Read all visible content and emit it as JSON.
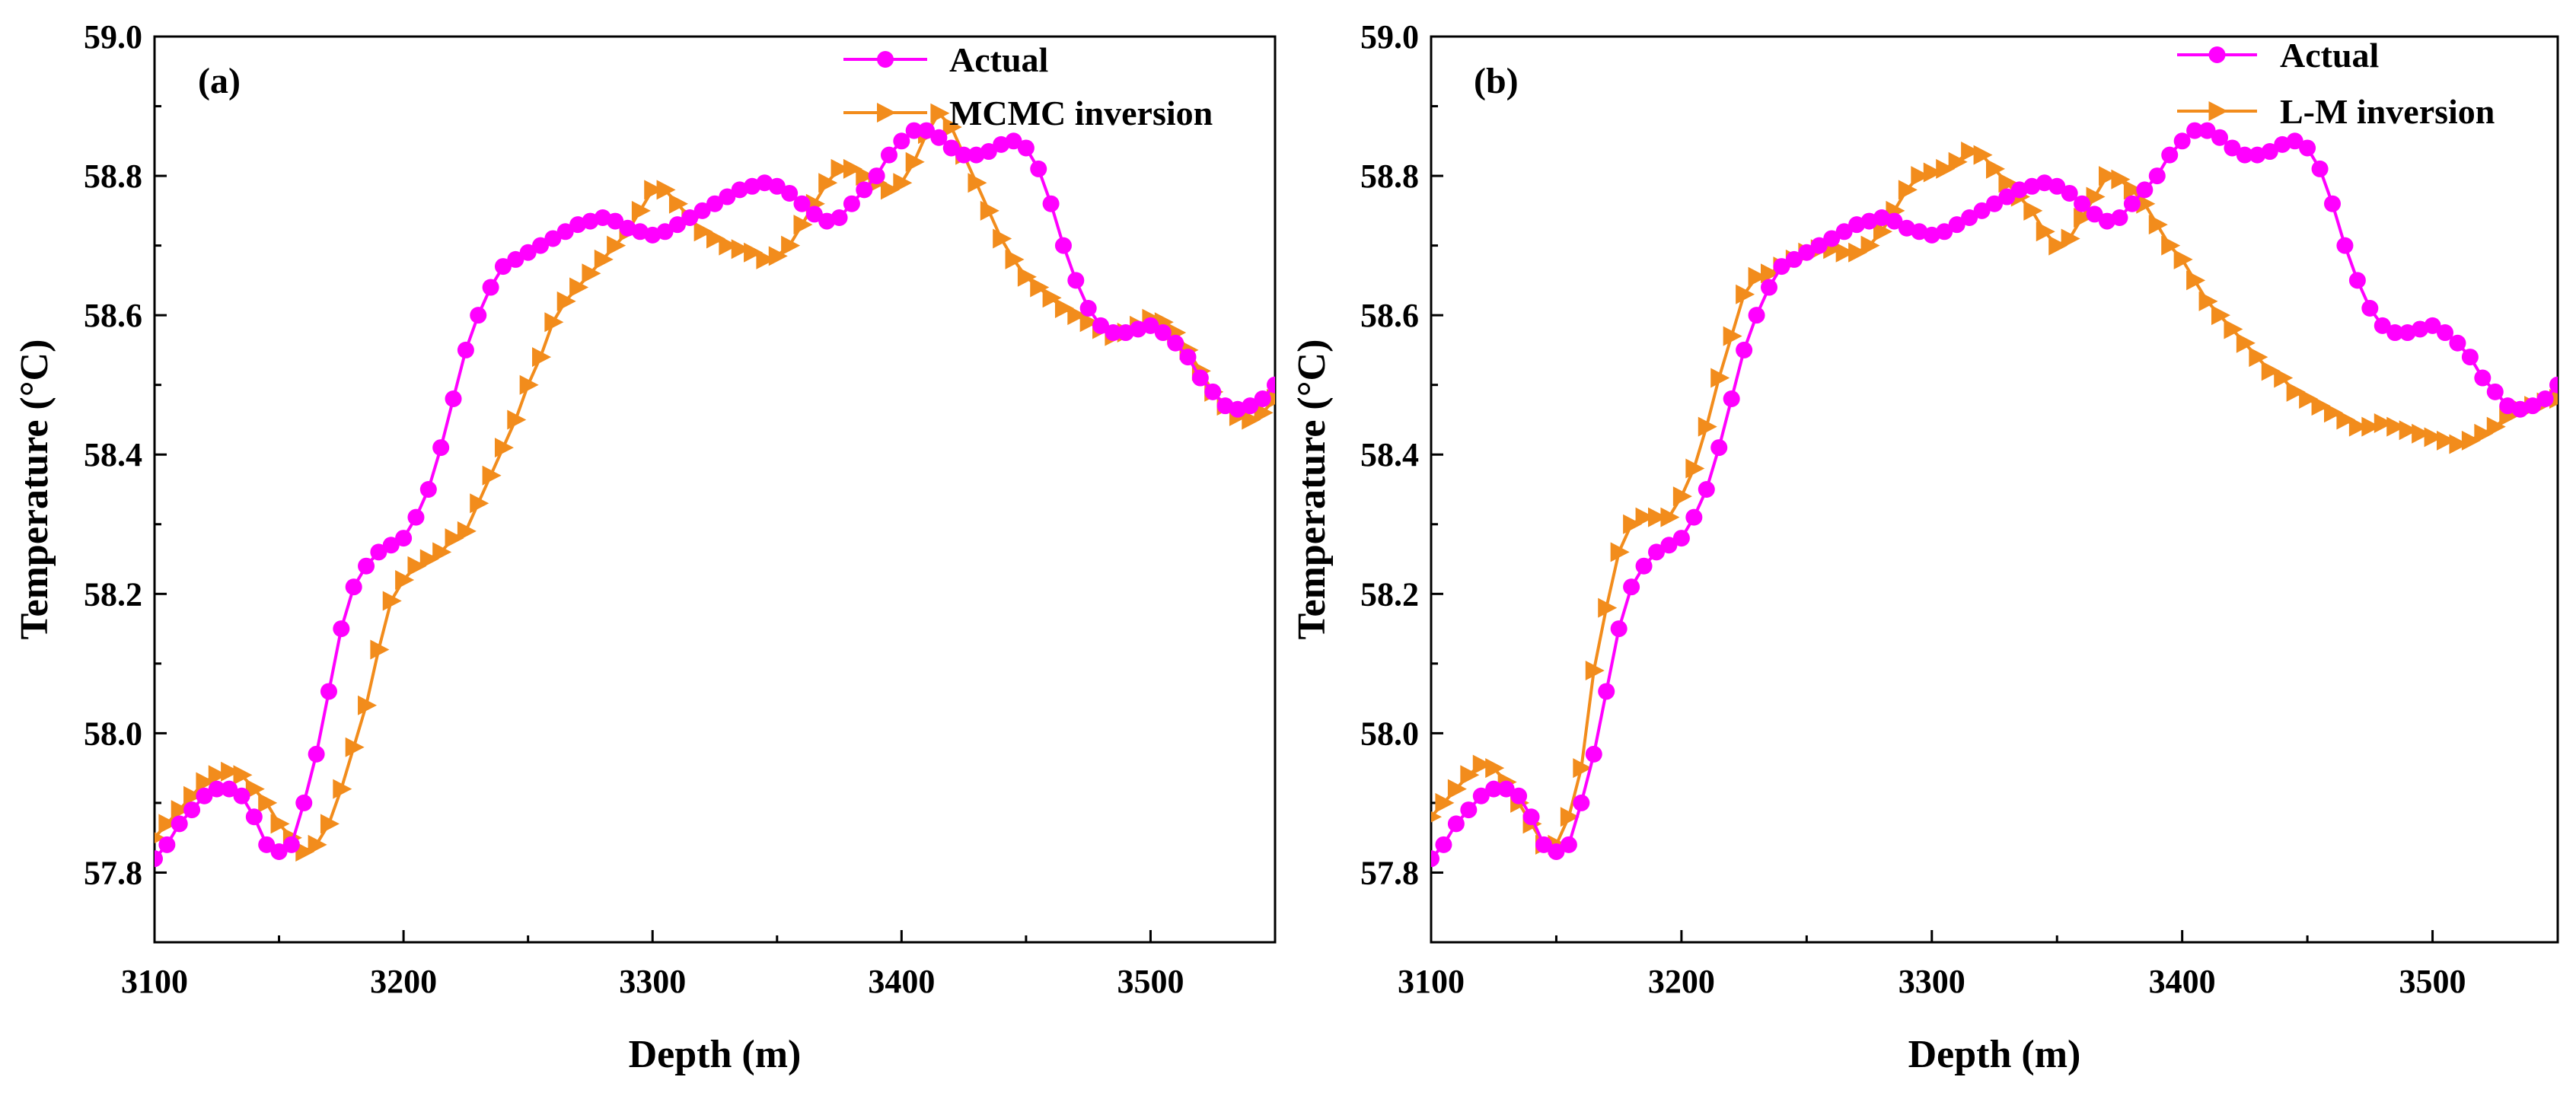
{
  "chart_data": [
    {
      "type": "line",
      "panel_label": "(a)",
      "xlabel": "Depth (m)",
      "ylabel": "Temperature (°C)",
      "xlim": [
        3100,
        3550
      ],
      "ylim": [
        57.7,
        59.0
      ],
      "xticks": [
        3100,
        3200,
        3300,
        3400,
        3500
      ],
      "xtick_labels": [
        "3100",
        "3200",
        "3300",
        "3400",
        "3500"
      ],
      "yticks": [
        57.8,
        58.0,
        58.2,
        58.4,
        58.6,
        58.8,
        59.0
      ],
      "ytick_labels": [
        "57.8",
        "58.0",
        "58.2",
        "58.4",
        "58.6",
        "58.8",
        "59.0"
      ],
      "legend_position": "top-right",
      "series": [
        {
          "name": "Actual",
          "color": "#ff00ff",
          "marker": "circle",
          "x": [
            3100,
            3105,
            3110,
            3115,
            3120,
            3125,
            3130,
            3135,
            3140,
            3145,
            3150,
            3155,
            3160,
            3165,
            3170,
            3175,
            3180,
            3185,
            3190,
            3195,
            3200,
            3205,
            3210,
            3215,
            3220,
            3225,
            3230,
            3235,
            3240,
            3245,
            3250,
            3255,
            3260,
            3265,
            3270,
            3275,
            3280,
            3285,
            3290,
            3295,
            3300,
            3305,
            3310,
            3315,
            3320,
            3325,
            3330,
            3335,
            3340,
            3345,
            3350,
            3355,
            3360,
            3365,
            3370,
            3375,
            3380,
            3385,
            3390,
            3395,
            3400,
            3405,
            3410,
            3415,
            3420,
            3425,
            3430,
            3435,
            3440,
            3445,
            3450,
            3455,
            3460,
            3465,
            3470,
            3475,
            3480,
            3485,
            3490,
            3495,
            3500,
            3505,
            3510,
            3515,
            3520,
            3525,
            3530,
            3535,
            3540,
            3545,
            3550
          ],
          "y": [
            57.82,
            57.84,
            57.87,
            57.89,
            57.91,
            57.92,
            57.92,
            57.91,
            57.88,
            57.84,
            57.83,
            57.84,
            57.9,
            57.97,
            58.06,
            58.15,
            58.21,
            58.24,
            58.26,
            58.27,
            58.28,
            58.31,
            58.35,
            58.41,
            58.48,
            58.55,
            58.6,
            58.64,
            58.67,
            58.68,
            58.69,
            58.7,
            58.71,
            58.72,
            58.73,
            58.735,
            58.74,
            58.735,
            58.725,
            58.72,
            58.715,
            58.72,
            58.73,
            58.74,
            58.75,
            58.76,
            58.77,
            58.78,
            58.785,
            58.79,
            58.785,
            58.775,
            58.76,
            58.745,
            58.735,
            58.74,
            58.76,
            58.78,
            58.8,
            58.83,
            58.85,
            58.865,
            58.865,
            58.855,
            58.84,
            58.83,
            58.83,
            58.835,
            58.845,
            58.85,
            58.84,
            58.81,
            58.76,
            58.7,
            58.65,
            58.61,
            58.585,
            58.575,
            58.575,
            58.58,
            58.585,
            58.575,
            58.56,
            58.54,
            58.51,
            58.49,
            58.47,
            58.465,
            58.47,
            58.48,
            58.5
          ]
        },
        {
          "name": "MCMC inversion",
          "color": "#f28c1c",
          "marker": "triangle-right",
          "x": [
            3100,
            3105,
            3110,
            3115,
            3120,
            3125,
            3130,
            3135,
            3140,
            3145,
            3150,
            3155,
            3160,
            3165,
            3170,
            3175,
            3180,
            3185,
            3190,
            3195,
            3200,
            3205,
            3210,
            3215,
            3220,
            3225,
            3230,
            3235,
            3240,
            3245,
            3250,
            3255,
            3260,
            3265,
            3270,
            3275,
            3280,
            3285,
            3290,
            3295,
            3300,
            3305,
            3310,
            3315,
            3320,
            3325,
            3330,
            3335,
            3340,
            3345,
            3350,
            3355,
            3360,
            3365,
            3370,
            3375,
            3380,
            3385,
            3390,
            3395,
            3400,
            3405,
            3410,
            3415,
            3420,
            3425,
            3430,
            3435,
            3440,
            3445,
            3450,
            3455,
            3460,
            3465,
            3470,
            3475,
            3480,
            3485,
            3490,
            3495,
            3500,
            3505,
            3510,
            3515,
            3520,
            3525,
            3530,
            3535,
            3540,
            3545,
            3550
          ],
          "y": [
            57.85,
            57.87,
            57.89,
            57.91,
            57.93,
            57.94,
            57.945,
            57.94,
            57.92,
            57.9,
            57.87,
            57.85,
            57.83,
            57.84,
            57.87,
            57.92,
            57.98,
            58.04,
            58.12,
            58.19,
            58.22,
            58.24,
            58.25,
            58.26,
            58.28,
            58.29,
            58.33,
            58.37,
            58.41,
            58.45,
            58.5,
            58.54,
            58.59,
            58.62,
            58.64,
            58.66,
            58.68,
            58.7,
            58.72,
            58.75,
            58.78,
            58.78,
            58.76,
            58.74,
            58.72,
            58.71,
            58.7,
            58.695,
            58.69,
            58.68,
            58.685,
            58.7,
            58.73,
            58.76,
            58.79,
            58.81,
            58.81,
            58.8,
            58.79,
            58.78,
            58.79,
            58.82,
            58.86,
            58.89,
            58.87,
            58.83,
            58.79,
            58.75,
            58.71,
            58.68,
            58.655,
            58.64,
            58.625,
            58.61,
            58.6,
            58.59,
            58.58,
            58.57,
            58.575,
            58.585,
            58.595,
            58.59,
            58.575,
            58.55,
            58.52,
            58.49,
            58.47,
            58.455,
            58.45,
            58.46,
            58.48
          ]
        }
      ]
    },
    {
      "type": "line",
      "panel_label": "(b)",
      "xlabel": "Depth (m)",
      "ylabel": "Temperature (°C)",
      "xlim": [
        3100,
        3550
      ],
      "ylim": [
        57.7,
        59.0
      ],
      "xticks": [
        3100,
        3200,
        3300,
        3400,
        3500
      ],
      "xtick_labels": [
        "3100",
        "3200",
        "3300",
        "3400",
        "3500"
      ],
      "yticks": [
        57.8,
        58.0,
        58.2,
        58.4,
        58.6,
        58.8,
        59.0
      ],
      "ytick_labels": [
        "57.8",
        "58.0",
        "58.2",
        "58.4",
        "58.6",
        "58.8",
        "59.0"
      ],
      "legend_position": "top-right",
      "series": [
        {
          "name": "Actual",
          "color": "#ff00ff",
          "marker": "circle",
          "x": [
            3100,
            3105,
            3110,
            3115,
            3120,
            3125,
            3130,
            3135,
            3140,
            3145,
            3150,
            3155,
            3160,
            3165,
            3170,
            3175,
            3180,
            3185,
            3190,
            3195,
            3200,
            3205,
            3210,
            3215,
            3220,
            3225,
            3230,
            3235,
            3240,
            3245,
            3250,
            3255,
            3260,
            3265,
            3270,
            3275,
            3280,
            3285,
            3290,
            3295,
            3300,
            3305,
            3310,
            3315,
            3320,
            3325,
            3330,
            3335,
            3340,
            3345,
            3350,
            3355,
            3360,
            3365,
            3370,
            3375,
            3380,
            3385,
            3390,
            3395,
            3400,
            3405,
            3410,
            3415,
            3420,
            3425,
            3430,
            3435,
            3440,
            3445,
            3450,
            3455,
            3460,
            3465,
            3470,
            3475,
            3480,
            3485,
            3490,
            3495,
            3500,
            3505,
            3510,
            3515,
            3520,
            3525,
            3530,
            3535,
            3540,
            3545,
            3550
          ],
          "y": [
            57.82,
            57.84,
            57.87,
            57.89,
            57.91,
            57.92,
            57.92,
            57.91,
            57.88,
            57.84,
            57.83,
            57.84,
            57.9,
            57.97,
            58.06,
            58.15,
            58.21,
            58.24,
            58.26,
            58.27,
            58.28,
            58.31,
            58.35,
            58.41,
            58.48,
            58.55,
            58.6,
            58.64,
            58.67,
            58.68,
            58.69,
            58.7,
            58.71,
            58.72,
            58.73,
            58.735,
            58.74,
            58.735,
            58.725,
            58.72,
            58.715,
            58.72,
            58.73,
            58.74,
            58.75,
            58.76,
            58.77,
            58.78,
            58.785,
            58.79,
            58.785,
            58.775,
            58.76,
            58.745,
            58.735,
            58.74,
            58.76,
            58.78,
            58.8,
            58.83,
            58.85,
            58.865,
            58.865,
            58.855,
            58.84,
            58.83,
            58.83,
            58.835,
            58.845,
            58.85,
            58.84,
            58.81,
            58.76,
            58.7,
            58.65,
            58.61,
            58.585,
            58.575,
            58.575,
            58.58,
            58.585,
            58.575,
            58.56,
            58.54,
            58.51,
            58.49,
            58.47,
            58.465,
            58.47,
            58.48,
            58.5
          ]
        },
        {
          "name": "L-M inversion",
          "color": "#f28c1c",
          "marker": "triangle-right",
          "x": [
            3100,
            3105,
            3110,
            3115,
            3120,
            3125,
            3130,
            3135,
            3140,
            3145,
            3150,
            3155,
            3160,
            3165,
            3170,
            3175,
            3180,
            3185,
            3190,
            3195,
            3200,
            3205,
            3210,
            3215,
            3220,
            3225,
            3230,
            3235,
            3240,
            3245,
            3250,
            3255,
            3260,
            3265,
            3270,
            3275,
            3280,
            3285,
            3290,
            3295,
            3300,
            3305,
            3310,
            3315,
            3320,
            3325,
            3330,
            3335,
            3340,
            3345,
            3350,
            3355,
            3360,
            3365,
            3370,
            3375,
            3380,
            3385,
            3390,
            3395,
            3400,
            3405,
            3410,
            3415,
            3420,
            3425,
            3430,
            3435,
            3440,
            3445,
            3450,
            3455,
            3460,
            3465,
            3470,
            3475,
            3480,
            3485,
            3490,
            3495,
            3500,
            3505,
            3510,
            3515,
            3520,
            3525,
            3530,
            3535,
            3540,
            3545,
            3550
          ],
          "y": [
            57.88,
            57.9,
            57.92,
            57.94,
            57.955,
            57.95,
            57.93,
            57.9,
            57.87,
            57.84,
            57.84,
            57.88,
            57.95,
            58.09,
            58.18,
            58.26,
            58.3,
            58.31,
            58.31,
            58.31,
            58.34,
            58.38,
            58.44,
            58.51,
            58.57,
            58.63,
            58.655,
            58.66,
            58.67,
            58.68,
            58.69,
            58.695,
            58.695,
            58.69,
            58.69,
            58.7,
            58.72,
            58.75,
            58.78,
            58.8,
            58.805,
            58.81,
            58.82,
            58.835,
            58.83,
            58.81,
            58.79,
            58.77,
            58.75,
            58.72,
            58.7,
            58.71,
            58.74,
            58.77,
            58.8,
            58.795,
            58.78,
            58.76,
            58.73,
            58.7,
            58.68,
            58.65,
            58.62,
            58.6,
            58.58,
            58.56,
            58.54,
            58.52,
            58.51,
            58.49,
            58.48,
            58.47,
            58.46,
            58.45,
            58.44,
            58.44,
            58.445,
            58.44,
            58.435,
            58.43,
            58.425,
            58.42,
            58.415,
            58.42,
            58.43,
            58.44,
            58.455,
            58.465,
            58.47,
            58.475,
            58.48
          ]
        }
      ]
    }
  ]
}
